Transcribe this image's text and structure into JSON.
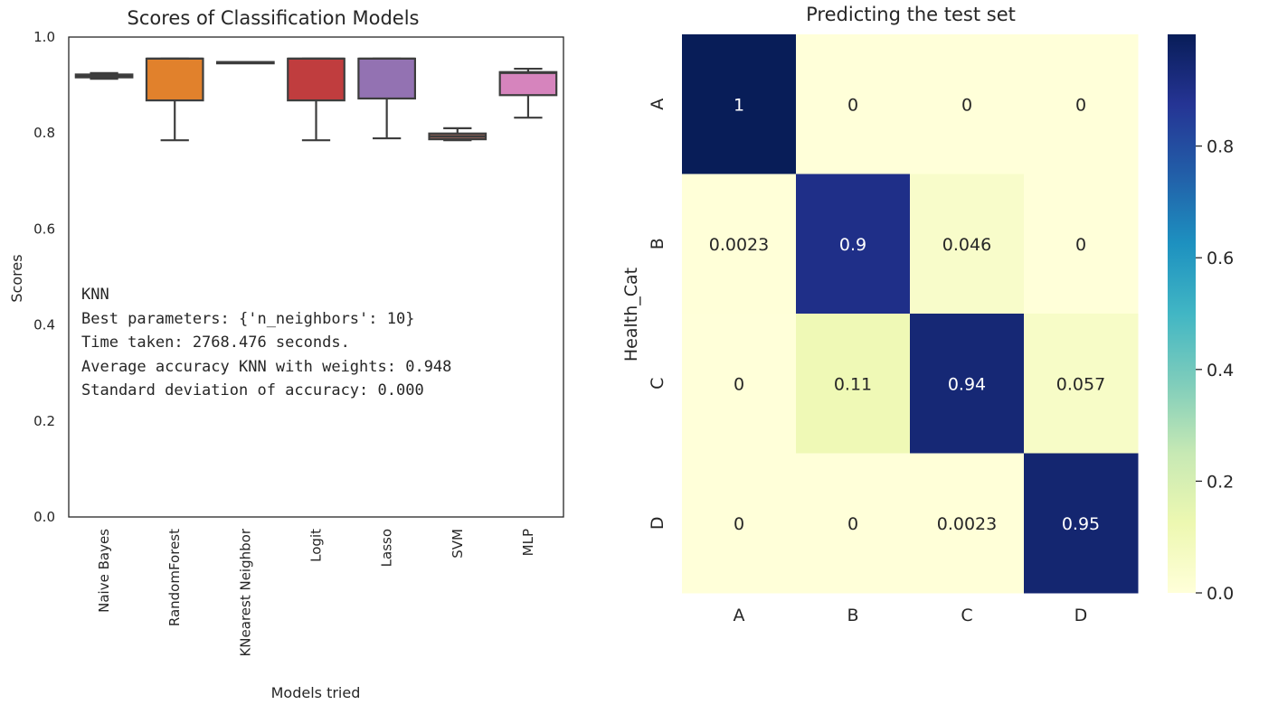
{
  "chart_data": [
    {
      "type": "box",
      "title": "Scores of Classification Models",
      "xlabel": "Models tried",
      "ylabel": "Scores",
      "ylim": [
        0.0,
        1.0
      ],
      "yticks": [
        "0.0",
        "0.2",
        "0.4",
        "0.6",
        "0.8",
        "1.0"
      ],
      "categories": [
        "Naive Bayes",
        "RandomForest",
        "KNearest Neighbor",
        "Logit",
        "Lasso",
        "SVM",
        "MLP"
      ],
      "boxes": [
        {
          "name": "Naive Bayes",
          "whisker_low": 0.913,
          "q1": 0.916,
          "median": 0.919,
          "q3": 0.922,
          "whisker_high": 0.925,
          "color": "#3a76af"
        },
        {
          "name": "RandomForest",
          "whisker_low": 0.785,
          "q1": 0.868,
          "median": 0.955,
          "q3": 0.955,
          "whisker_high": 0.955,
          "color": "#e1812c"
        },
        {
          "name": "KNearest Neighbor",
          "whisker_low": 0.948,
          "q1": 0.948,
          "median": 0.948,
          "q3": 0.948,
          "whisker_high": 0.948,
          "color": "#3a923a"
        },
        {
          "name": "Logit",
          "whisker_low": 0.785,
          "q1": 0.868,
          "median": 0.955,
          "q3": 0.955,
          "whisker_high": 0.955,
          "color": "#c03d3e"
        },
        {
          "name": "Lasso",
          "whisker_low": 0.789,
          "q1": 0.872,
          "median": 0.955,
          "q3": 0.955,
          "whisker_high": 0.955,
          "color": "#9372b2"
        },
        {
          "name": "SVM",
          "whisker_low": 0.785,
          "q1": 0.787,
          "median": 0.793,
          "q3": 0.799,
          "whisker_high": 0.81,
          "color": "#845b53"
        },
        {
          "name": "MLP",
          "whisker_low": 0.832,
          "q1": 0.879,
          "median": 0.925,
          "q3": 0.927,
          "whisker_high": 0.934,
          "color": "#d684bd"
        }
      ],
      "annotation_lines": [
        "KNN",
        "Best parameters: {'n_neighbors': 10}",
        "Time taken: 2768.476 seconds.",
        "Average accuracy KNN with weights: 0.948",
        "Standard deviation of accuracy: 0.000"
      ]
    },
    {
      "type": "heatmap",
      "title": "Predicting the test set",
      "ylabel": "Health_Cat",
      "xlabel": "",
      "x_categories": [
        "A",
        "B",
        "C",
        "D"
      ],
      "y_categories": [
        "A",
        "B",
        "C",
        "D"
      ],
      "values": [
        [
          1,
          0,
          0,
          0
        ],
        [
          0.0023,
          0.9,
          0.046,
          0
        ],
        [
          0,
          0.11,
          0.94,
          0.057
        ],
        [
          0,
          0,
          0.0023,
          0.95
        ]
      ],
      "cell_labels": [
        [
          "1",
          "0",
          "0",
          "0"
        ],
        [
          "0.0023",
          "0.9",
          "0.046",
          "0"
        ],
        [
          "0",
          "0.11",
          "0.94",
          "0.057"
        ],
        [
          "0",
          "0",
          "0.0023",
          "0.95"
        ]
      ],
      "colormap": "YlGnBu",
      "colorbar_range": [
        0.0,
        1.0
      ],
      "colorbar_ticks": [
        "0.0",
        "0.2",
        "0.4",
        "0.6",
        "0.8"
      ]
    }
  ]
}
